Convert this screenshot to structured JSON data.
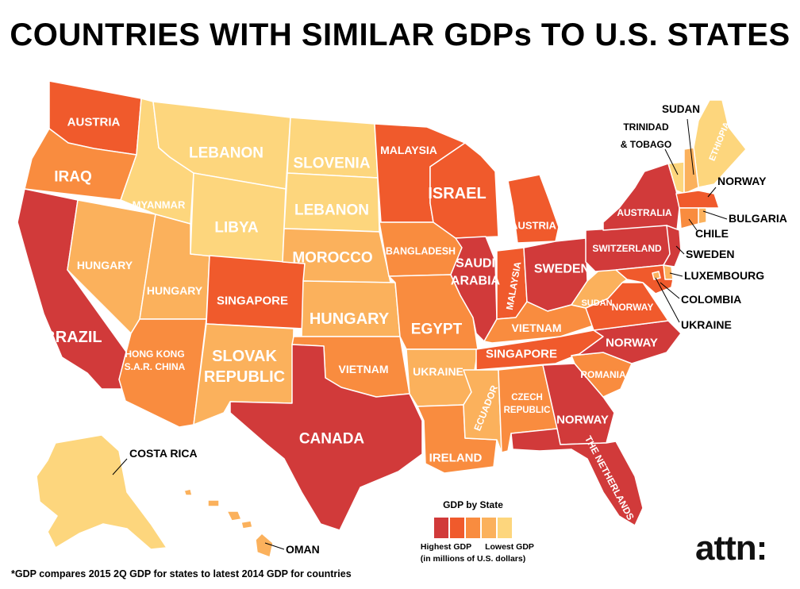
{
  "title": "COUNTRIES WITH SIMILAR GDPs TO U.S. STATES",
  "colors": {
    "level1": "#d13a3a",
    "level2": "#f05a2c",
    "level3": "#f98c3f",
    "level4": "#fbb15c",
    "level5": "#fdd67d",
    "border": "#ffffff",
    "text_on_map": "#ffffff",
    "text_off_map": "#000000"
  },
  "states": [
    {
      "state": "Washington",
      "country": "AUSTRIA",
      "level": 2
    },
    {
      "state": "Oregon",
      "country": "IRAQ",
      "level": 3
    },
    {
      "state": "California",
      "country": "BRAZIL",
      "level": 1
    },
    {
      "state": "Idaho",
      "country": "MYANMAR",
      "level": 5
    },
    {
      "state": "Montana",
      "country": "LEBANON",
      "level": 5
    },
    {
      "state": "Nevada",
      "country": "HUNGARY",
      "level": 4
    },
    {
      "state": "Utah",
      "country": "HUNGARY",
      "level": 4
    },
    {
      "state": "Arizona",
      "country": "HONG KONG S.A.R. CHINA",
      "level": 3
    },
    {
      "state": "Wyoming",
      "country": "LIBYA",
      "level": 5
    },
    {
      "state": "Colorado",
      "country": "SINGAPORE",
      "level": 2
    },
    {
      "state": "New Mexico",
      "country": "SLOVAK REPUBLIC",
      "level": 4
    },
    {
      "state": "North Dakota",
      "country": "SLOVENIA",
      "level": 5
    },
    {
      "state": "South Dakota",
      "country": "LEBANON",
      "level": 5
    },
    {
      "state": "Nebraska",
      "country": "MOROCCO",
      "level": 4
    },
    {
      "state": "Kansas",
      "country": "HUNGARY",
      "level": 4
    },
    {
      "state": "Oklahoma",
      "country": "VIETNAM",
      "level": 3
    },
    {
      "state": "Texas",
      "country": "CANADA",
      "level": 1
    },
    {
      "state": "Minnesota",
      "country": "MALAYSIA",
      "level": 2
    },
    {
      "state": "Iowa",
      "country": "BANGLADESH",
      "level": 3
    },
    {
      "state": "Missouri",
      "country": "EGYPT",
      "level": 3
    },
    {
      "state": "Arkansas",
      "country": "UKRAINE",
      "level": 4
    },
    {
      "state": "Louisiana",
      "country": "IRELAND",
      "level": 3
    },
    {
      "state": "Wisconsin",
      "country": "ISRAEL",
      "level": 2
    },
    {
      "state": "Illinois",
      "country": "SAUDI ARABIA",
      "level": 1
    },
    {
      "state": "Michigan",
      "country": "AUSTRIA",
      "level": 2
    },
    {
      "state": "Indiana",
      "country": "MALAYSIA",
      "level": 2
    },
    {
      "state": "Ohio",
      "country": "SWEDEN",
      "level": 1
    },
    {
      "state": "Kentucky",
      "country": "VIETNAM",
      "level": 3
    },
    {
      "state": "Tennessee",
      "country": "SINGAPORE",
      "level": 2
    },
    {
      "state": "Mississippi",
      "country": "ECUADOR",
      "level": 4
    },
    {
      "state": "Alabama",
      "country": "CZECH REPUBLIC",
      "level": 3
    },
    {
      "state": "Georgia",
      "country": "NORWAY",
      "level": 1
    },
    {
      "state": "Florida",
      "country": "THE NETHERLANDS",
      "level": 1
    },
    {
      "state": "South Carolina",
      "country": "ROMANIA",
      "level": 3
    },
    {
      "state": "North Carolina",
      "country": "NORWAY",
      "level": 1
    },
    {
      "state": "Virginia",
      "country": "NORWAY",
      "level": 2
    },
    {
      "state": "West Virginia",
      "country": "SUDAN",
      "level": 4
    },
    {
      "state": "Pennsylvania",
      "country": "SWITZERLAND",
      "level": 1
    },
    {
      "state": "New York",
      "country": "AUSTRALIA",
      "level": 1
    },
    {
      "state": "Maine",
      "country": "ETHIOPIA",
      "level": 5
    },
    {
      "state": "Vermont",
      "country": "TRINIDAD & TOBAGO",
      "level": 5
    },
    {
      "state": "New Hampshire",
      "country": "SUDAN",
      "level": 4
    },
    {
      "state": "Massachusetts",
      "country": "NORWAY",
      "level": 2
    },
    {
      "state": "Rhode Island",
      "country": "BULGARIA",
      "level": 4
    },
    {
      "state": "Connecticut",
      "country": "CHILE",
      "level": 3
    },
    {
      "state": "New Jersey",
      "country": "SWEDEN",
      "level": 1
    },
    {
      "state": "Delaware",
      "country": "LUXEMBOURG",
      "level": 4
    },
    {
      "state": "Maryland",
      "country": "COLOMBIA",
      "level": 2
    },
    {
      "state": "District of Columbia",
      "country": "UKRAINE",
      "level": 4
    },
    {
      "state": "Alaska",
      "country": "COSTA RICA",
      "level": 5
    },
    {
      "state": "Hawaii",
      "country": "OMAN",
      "level": 4
    }
  ],
  "legend": {
    "title": "GDP by State",
    "high_label": "Highest GDP",
    "low_label": "Lowest GDP",
    "units": "(in millions of U.S. dollars)"
  },
  "footnote": "*GDP compares 2015 2Q GDP for states to latest 2014 GDP for countries",
  "brand": "attn:"
}
